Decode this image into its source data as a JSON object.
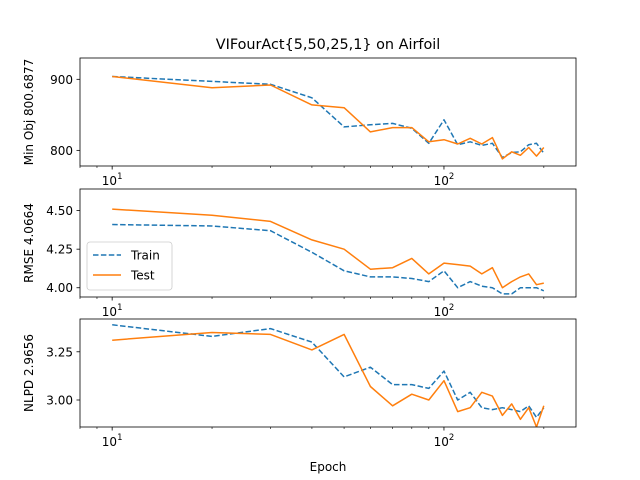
{
  "chart_data": {
    "type": "line",
    "title": "VIFourAct{5,50,25,1} on Airfoil",
    "xlabel": "Epoch",
    "xscale": "log",
    "xlim": [
      8,
      250
    ],
    "xticks": [
      {
        "value": 10,
        "base": "10",
        "exp": "1"
      },
      {
        "value": 100,
        "base": "10",
        "exp": "2"
      }
    ],
    "legend": {
      "location": "center-left",
      "panel": 1
    },
    "colors": {
      "Train": "#1f77b4",
      "Test": "#ff7f0e"
    },
    "panels": [
      {
        "ylabel": "Min Obj 800.6877",
        "ylim": [
          778,
          930
        ],
        "yticks": [
          800,
          900
        ],
        "series": [
          {
            "name": "Train",
            "x": [
              10,
              20,
              30,
              40,
              50,
              60,
              70,
              80,
              90,
              100,
              110,
              120,
              130,
              140,
              150,
              160,
              170,
              180,
              190,
              200
            ],
            "y": [
              904,
              897,
              893,
              874,
              833,
              836,
              838,
              831,
              810,
              843,
              808,
              812,
              807,
              810,
              790,
              797,
              798,
              808,
              810,
              796
            ]
          },
          {
            "name": "Test",
            "x": [
              10,
              20,
              30,
              40,
              50,
              60,
              70,
              80,
              90,
              100,
              110,
              120,
              130,
              140,
              150,
              160,
              170,
              180,
              190,
              200
            ],
            "y": [
              904,
              888,
              892,
              864,
              860,
              826,
              832,
              832,
              812,
              815,
              809,
              817,
              809,
              818,
              788,
              798,
              793,
              804,
              792,
              804
            ]
          }
        ]
      },
      {
        "ylabel": "RMSE 4.0664",
        "ylim": [
          3.94,
          4.64
        ],
        "yticks": [
          4.0,
          4.25,
          4.5
        ],
        "series": [
          {
            "name": "Train",
            "x": [
              10,
              20,
              30,
              40,
              50,
              60,
              70,
              80,
              90,
              100,
              110,
              120,
              130,
              140,
              150,
              160,
              170,
              180,
              190,
              200
            ],
            "y": [
              4.41,
              4.4,
              4.37,
              4.23,
              4.11,
              4.07,
              4.07,
              4.06,
              4.04,
              4.11,
              4.0,
              4.04,
              4.01,
              4.0,
              3.96,
              3.96,
              4.0,
              4.0,
              4.0,
              3.98
            ]
          },
          {
            "name": "Test",
            "x": [
              10,
              20,
              30,
              40,
              50,
              60,
              70,
              80,
              90,
              100,
              110,
              120,
              130,
              140,
              150,
              160,
              170,
              180,
              190,
              200
            ],
            "y": [
              4.51,
              4.47,
              4.43,
              4.31,
              4.25,
              4.12,
              4.13,
              4.19,
              4.09,
              4.16,
              4.15,
              4.14,
              4.09,
              4.13,
              4.0,
              4.04,
              4.07,
              4.09,
              4.02,
              4.03
            ]
          }
        ]
      },
      {
        "ylabel": "NLPD 2.9656",
        "ylim": [
          2.86,
          3.42
        ],
        "yticks": [
          3.0,
          3.25
        ],
        "series": [
          {
            "name": "Train",
            "x": [
              10,
              20,
              30,
              40,
              50,
              60,
              70,
              80,
              90,
              100,
              110,
              120,
              130,
              140,
              150,
              160,
              170,
              180,
              190,
              200
            ],
            "y": [
              3.39,
              3.33,
              3.37,
              3.3,
              3.12,
              3.17,
              3.08,
              3.08,
              3.06,
              3.15,
              3.0,
              3.04,
              2.96,
              2.95,
              2.96,
              2.95,
              2.94,
              2.97,
              2.91,
              2.96
            ]
          },
          {
            "name": "Test",
            "x": [
              10,
              20,
              30,
              40,
              50,
              60,
              70,
              80,
              90,
              100,
              110,
              120,
              130,
              140,
              150,
              160,
              170,
              180,
              190,
              200
            ],
            "y": [
              3.31,
              3.35,
              3.34,
              3.26,
              3.34,
              3.07,
              2.97,
              3.03,
              3.0,
              3.1,
              2.94,
              2.96,
              3.04,
              3.02,
              2.92,
              2.98,
              2.9,
              2.96,
              2.86,
              2.97
            ]
          }
        ]
      }
    ]
  }
}
